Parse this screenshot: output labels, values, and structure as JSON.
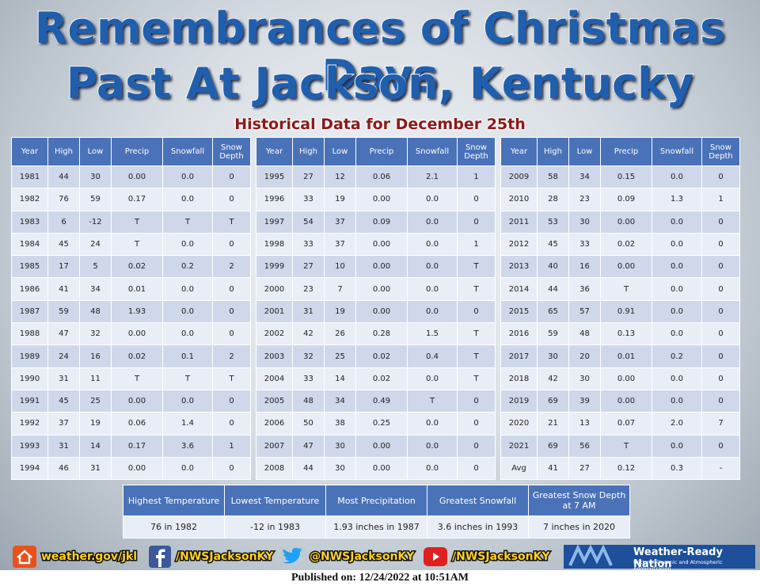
{
  "header": {
    "title_line1": "Remembrances of Christmas Days",
    "title_line2": "Past At Jackson, Kentucky",
    "subtitle": "Historical Data for December 25th"
  },
  "columns": [
    "Year",
    "High",
    "Low",
    "Precip",
    "Snowfall",
    "Snow Depth"
  ],
  "tables": [
    {
      "rows": [
        [
          "1981",
          "44",
          "30",
          "0.00",
          "0.0",
          "0"
        ],
        [
          "1982",
          "76",
          "59",
          "0.17",
          "0.0",
          "0"
        ],
        [
          "1983",
          "6",
          "-12",
          "T",
          "T",
          "T"
        ],
        [
          "1984",
          "45",
          "24",
          "T",
          "0.0",
          "0"
        ],
        [
          "1985",
          "17",
          "5",
          "0.02",
          "0.2",
          "2"
        ],
        [
          "1986",
          "41",
          "34",
          "0.01",
          "0.0",
          "0"
        ],
        [
          "1987",
          "59",
          "48",
          "1.93",
          "0.0",
          "0"
        ],
        [
          "1988",
          "47",
          "32",
          "0.00",
          "0.0",
          "0"
        ],
        [
          "1989",
          "24",
          "16",
          "0.02",
          "0.1",
          "2"
        ],
        [
          "1990",
          "31",
          "11",
          "T",
          "T",
          "T"
        ],
        [
          "1991",
          "45",
          "25",
          "0.00",
          "0.0",
          "0"
        ],
        [
          "1992",
          "37",
          "19",
          "0.06",
          "1.4",
          "0"
        ],
        [
          "1993",
          "31",
          "14",
          "0.17",
          "3.6",
          "1"
        ],
        [
          "1994",
          "46",
          "31",
          "0.00",
          "0.0",
          "0"
        ]
      ]
    },
    {
      "rows": [
        [
          "1995",
          "27",
          "12",
          "0.06",
          "2.1",
          "1"
        ],
        [
          "1996",
          "33",
          "19",
          "0.00",
          "0.0",
          "0"
        ],
        [
          "1997",
          "54",
          "37",
          "0.09",
          "0.0",
          "0"
        ],
        [
          "1998",
          "33",
          "37",
          "0.00",
          "0.0",
          "1"
        ],
        [
          "1999",
          "27",
          "10",
          "0.00",
          "0.0",
          "T"
        ],
        [
          "2000",
          "23",
          "7",
          "0.00",
          "0.0",
          "T"
        ],
        [
          "2001",
          "31",
          "19",
          "0.00",
          "0.0",
          "0"
        ],
        [
          "2002",
          "42",
          "26",
          "0.28",
          "1.5",
          "T"
        ],
        [
          "2003",
          "32",
          "25",
          "0.02",
          "0.4",
          "T"
        ],
        [
          "2004",
          "33",
          "14",
          "0.02",
          "0.0",
          "T"
        ],
        [
          "2005",
          "48",
          "34",
          "0.49",
          "T",
          "0"
        ],
        [
          "2006",
          "50",
          "38",
          "0.25",
          "0.0",
          "0"
        ],
        [
          "2007",
          "47",
          "30",
          "0.00",
          "0.0",
          "0"
        ],
        [
          "2008",
          "44",
          "30",
          "0.00",
          "0.0",
          "0"
        ]
      ]
    },
    {
      "rows": [
        [
          "2009",
          "58",
          "34",
          "0.15",
          "0.0",
          "0"
        ],
        [
          "2010",
          "28",
          "23",
          "0.09",
          "1.3",
          "1"
        ],
        [
          "2011",
          "53",
          "30",
          "0.00",
          "0.0",
          "0"
        ],
        [
          "2012",
          "45",
          "33",
          "0.02",
          "0.0",
          "0"
        ],
        [
          "2013",
          "40",
          "16",
          "0.00",
          "0.0",
          "0"
        ],
        [
          "2014",
          "44",
          "36",
          "T",
          "0.0",
          "0"
        ],
        [
          "2015",
          "65",
          "57",
          "0.91",
          "0.0",
          "0"
        ],
        [
          "2016",
          "59",
          "48",
          "0.13",
          "0.0",
          "0"
        ],
        [
          "2017",
          "30",
          "20",
          "0.01",
          "0.2",
          "0"
        ],
        [
          "2018",
          "42",
          "30",
          "0.00",
          "0.0",
          "0"
        ],
        [
          "2019",
          "69",
          "39",
          "0.00",
          "0.0",
          "0"
        ],
        [
          "2020",
          "21",
          "13",
          "0.07",
          "2.0",
          "7"
        ],
        [
          "2021",
          "69",
          "56",
          "T",
          "0.0",
          "0"
        ],
        [
          "Avg",
          "41",
          "27",
          "0.12",
          "0.3",
          "-"
        ]
      ]
    }
  ],
  "summary": {
    "headers": [
      "Highest Temperature",
      "Lowest Temperature",
      "Most Precipitation",
      "Greatest Snowfall",
      "Greatest Snow Depth at 7 AM"
    ],
    "values": [
      "76 in 1982",
      "-12 in 1983",
      "1.93 inches in 1987",
      "3.6 inches in 1993",
      "7 inches in 2020"
    ]
  },
  "footer": {
    "website": "weather.gov/jkl",
    "facebook": "/NWSJacksonKY",
    "twitter": "@NWSJacksonKY",
    "youtube": "/NWSJacksonKY",
    "brand": "Weather-Ready Nation",
    "brand_sub": "National Oceanic and Atmospheric Administration",
    "published": "Published on: 12/24/2022 at 10:51AM"
  }
}
